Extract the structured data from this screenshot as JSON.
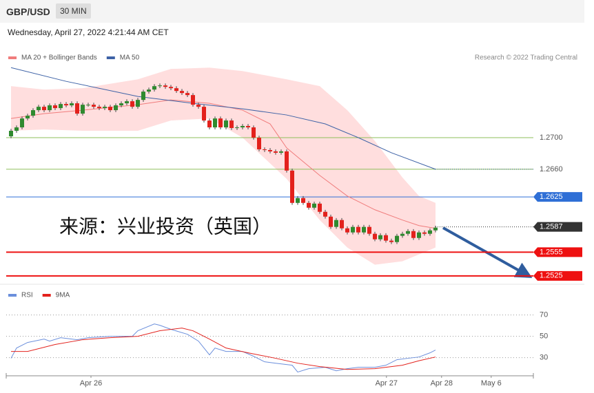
{
  "header": {
    "symbol": "GBP/USD",
    "interval": "30 MIN",
    "timestamp": "Wednesday, April 27, 2022 4:21:44 AM CET"
  },
  "chart_data": [
    {
      "type": "candlestick",
      "source": "Research © 2022 Trading Central",
      "annotation": "来源：兴业投资（英国）",
      "up_color": "#2f8a2f",
      "down_color": "#e3211c",
      "open": [
        1.27017,
        1.27087,
        1.2713,
        1.27243,
        1.27278,
        1.27348,
        1.27391,
        1.27348,
        1.27409,
        1.27374,
        1.27426,
        1.27409,
        1.27435,
        1.27304,
        1.27417,
        1.27417,
        1.27391,
        1.27374,
        1.27391,
        1.27348,
        1.27409,
        1.27435,
        1.27461,
        1.27391,
        1.27478,
        1.27583,
        1.27609,
        1.27652,
        1.27661,
        1.27643,
        1.27626,
        1.27591,
        1.27565,
        1.27539,
        1.27417,
        1.27391,
        1.27217,
        1.2713,
        1.27243,
        1.2713,
        1.27217,
        1.27122,
        1.2713,
        1.27148,
        1.2713,
        1.27,
        1.26852,
        1.26843,
        1.26826,
        1.26809,
        1.26826,
        1.26583,
        1.26174,
        1.26235,
        1.26174,
        1.26113,
        1.26165,
        1.26061,
        1.26,
        1.2587,
        1.25957,
        1.25852,
        1.258,
        1.2587,
        1.258,
        1.2587,
        1.25783,
        1.25713,
        1.25765,
        1.25696,
        1.25678,
        1.25757,
        1.25783,
        1.25817,
        1.2573,
        1.258,
        1.25783,
        1.25826
      ],
      "high": [
        1.27112,
        1.27155,
        1.27268,
        1.27303,
        1.27373,
        1.27416,
        1.27416,
        1.27434,
        1.27434,
        1.27451,
        1.27451,
        1.2746,
        1.2746,
        1.27442,
        1.27442,
        1.27442,
        1.27416,
        1.27416,
        1.27416,
        1.27434,
        1.2746,
        1.27486,
        1.27486,
        1.27503,
        1.27608,
        1.27634,
        1.27677,
        1.27686,
        1.27686,
        1.27668,
        1.27651,
        1.27616,
        1.2759,
        1.27564,
        1.27442,
        1.27416,
        1.27242,
        1.27268,
        1.27268,
        1.27242,
        1.27242,
        1.27155,
        1.27173,
        1.27173,
        1.27155,
        1.27025,
        1.26877,
        1.26868,
        1.26851,
        1.26851,
        1.26851,
        1.26608,
        1.2626,
        1.2626,
        1.26199,
        1.2619,
        1.2619,
        1.26086,
        1.26025,
        1.25982,
        1.25982,
        1.25877,
        1.25895,
        1.25895,
        1.25895,
        1.25895,
        1.25808,
        1.2579,
        1.2579,
        1.25721,
        1.25782,
        1.25808,
        1.25842,
        1.25842,
        1.25825,
        1.25825,
        1.25851,
        1.25886
      ],
      "low": [
        1.26992,
        1.27062,
        1.27105,
        1.27218,
        1.27253,
        1.27323,
        1.27323,
        1.27323,
        1.27349,
        1.27349,
        1.27384,
        1.27384,
        1.27279,
        1.27279,
        1.27392,
        1.27366,
        1.27349,
        1.27349,
        1.27323,
        1.27323,
        1.27384,
        1.2741,
        1.27366,
        1.27366,
        1.27453,
        1.27558,
        1.27584,
        1.27627,
        1.27618,
        1.27601,
        1.27566,
        1.2754,
        1.27514,
        1.27392,
        1.27366,
        1.27192,
        1.27105,
        1.27105,
        1.27105,
        1.27105,
        1.27097,
        1.27097,
        1.27105,
        1.27105,
        1.26975,
        1.26827,
        1.26818,
        1.26801,
        1.26784,
        1.26784,
        1.26558,
        1.26149,
        1.26149,
        1.26149,
        1.26088,
        1.26088,
        1.26036,
        1.25975,
        1.25845,
        1.25845,
        1.25827,
        1.25775,
        1.25775,
        1.25775,
        1.25775,
        1.25758,
        1.25688,
        1.25688,
        1.25671,
        1.25653,
        1.25653,
        1.25732,
        1.25758,
        1.25705,
        1.25705,
        1.25758,
        1.25758,
        1.25801
      ],
      "close": [
        1.27087,
        1.2713,
        1.27243,
        1.27278,
        1.27348,
        1.27391,
        1.27348,
        1.27409,
        1.27374,
        1.27426,
        1.27409,
        1.27435,
        1.27304,
        1.27417,
        1.27417,
        1.27391,
        1.27374,
        1.27391,
        1.27348,
        1.27409,
        1.27435,
        1.27461,
        1.27391,
        1.27478,
        1.27583,
        1.27609,
        1.27652,
        1.27661,
        1.27643,
        1.27626,
        1.27591,
        1.27565,
        1.27539,
        1.27417,
        1.27391,
        1.27217,
        1.2713,
        1.27243,
        1.2713,
        1.27217,
        1.27122,
        1.2713,
        1.27148,
        1.2713,
        1.27,
        1.26852,
        1.26843,
        1.26826,
        1.26809,
        1.26826,
        1.26583,
        1.26174,
        1.26235,
        1.26174,
        1.26113,
        1.26165,
        1.26061,
        1.26,
        1.2587,
        1.25957,
        1.25852,
        1.258,
        1.2587,
        1.258,
        1.2587,
        1.25783,
        1.25713,
        1.25765,
        1.25696,
        1.25678,
        1.25757,
        1.25783,
        1.25817,
        1.2573,
        1.258,
        1.25783,
        1.25826,
        1.25861
      ],
      "bands": {
        "color": "#ffdede",
        "x": [
          0,
          6,
          13,
          23,
          29,
          36,
          42,
          50,
          56,
          61,
          66,
          71,
          74,
          77
        ],
        "upper": [
          1.27652,
          1.27609,
          1.27626,
          1.27739,
          1.2787,
          1.27887,
          1.27843,
          1.27739,
          1.27652,
          1.27348,
          1.26957,
          1.26496,
          1.26261,
          1.26174
        ],
        "lower": [
          1.27087,
          1.27104,
          1.27087,
          1.27087,
          1.27217,
          1.27243,
          1.27,
          1.26478,
          1.25957,
          1.25609,
          1.25391,
          1.25435,
          1.25522,
          1.25609
        ]
      },
      "series": [
        {
          "name": "MA 20 + Bollinger Bands",
          "color": "#f07c7c",
          "x": [
            0,
            6,
            13,
            23,
            29,
            36,
            42,
            47,
            50,
            56,
            61,
            66,
            71,
            74,
            77
          ],
          "values": [
            1.27243,
            1.27304,
            1.27348,
            1.27417,
            1.27478,
            1.27435,
            1.27348,
            1.27174,
            1.2687,
            1.26522,
            1.26261,
            1.26087,
            1.25957,
            1.25887,
            1.25852
          ]
        },
        {
          "name": "MA 50",
          "color": "#3d62a6",
          "x": [
            0,
            10,
            23,
            33,
            42,
            50,
            57,
            63,
            69,
            77
          ],
          "values": [
            1.27887,
            1.27713,
            1.27522,
            1.27435,
            1.27365,
            1.27287,
            1.27174,
            1.27,
            1.26809,
            1.266
          ]
        }
      ],
      "levels": [
        {
          "value": 1.27,
          "label": "1.2700",
          "color": "#8dbf5a",
          "style": "plain",
          "width": 1
        },
        {
          "value": 1.266,
          "label": "1.2660",
          "color": "#8dbf5a",
          "style": "plain",
          "width": 1
        },
        {
          "value": 1.2625,
          "label": "1.2625",
          "color": "#2f6fd6",
          "style": "tag",
          "width": 1
        },
        {
          "value": 1.2587,
          "label": "1.2587",
          "color": "#333333",
          "style": "tag",
          "width": 1,
          "dotted": true
        },
        {
          "value": 1.2555,
          "label": "1.2555",
          "color": "#ee1111",
          "style": "tag",
          "width": 2
        },
        {
          "value": 1.2525,
          "label": "1.2525",
          "color": "#ee1111",
          "style": "tag",
          "width": 2
        }
      ],
      "xlim": [
        -0.875,
        94.75
      ],
      "ylim": [
        1.2517,
        1.2822
      ],
      "xticks": [
        {
          "value": 14.5,
          "label": "Apr 26"
        },
        {
          "value": 68.1,
          "label": "Apr 27"
        },
        {
          "value": 78.1,
          "label": "Apr 28"
        },
        {
          "value": 87.1,
          "label": "May 6"
        }
      ]
    },
    {
      "type": "line",
      "series": [
        {
          "name": "RSI",
          "color": "#6b8fdc",
          "x": [
            0,
            1,
            3,
            6,
            7,
            9,
            12,
            14,
            18,
            22,
            23,
            26,
            27,
            29,
            32,
            34,
            36,
            37,
            39,
            42,
            44,
            46,
            48,
            51,
            52,
            54,
            57,
            59,
            61,
            63,
            66,
            68,
            70,
            72,
            74,
            76,
            77
          ],
          "values": [
            29.4,
            39.0,
            44.2,
            47.4,
            45.5,
            48.7,
            46.8,
            48.7,
            50,
            50,
            55.2,
            61.6,
            60.3,
            56.5,
            51.9,
            45.5,
            32.6,
            39.0,
            35.8,
            35.8,
            31.3,
            26.1,
            24.8,
            22.9,
            16.5,
            19.7,
            21.0,
            17.7,
            19.7,
            21.0,
            21.0,
            22.9,
            28.1,
            29.4,
            30.6,
            34.5,
            37.1
          ]
        },
        {
          "name": "9MA",
          "color": "#e3211c",
          "x": [
            0,
            3,
            8,
            13,
            18,
            23,
            27,
            31,
            33,
            36,
            39,
            43,
            48,
            52,
            56,
            61,
            66,
            71,
            74,
            77
          ],
          "values": [
            35.8,
            35.8,
            42.3,
            46.8,
            48.7,
            50,
            55.2,
            57.7,
            55.2,
            47.4,
            39.0,
            34.5,
            29.4,
            24.8,
            21.6,
            19.0,
            19.7,
            22.9,
            27.1,
            30.6
          ]
        }
      ],
      "xlim": [
        -0.875,
        94.75
      ],
      "ylim": [
        13,
        91
      ],
      "yticks": [
        70,
        50,
        30
      ],
      "grid": true
    }
  ]
}
